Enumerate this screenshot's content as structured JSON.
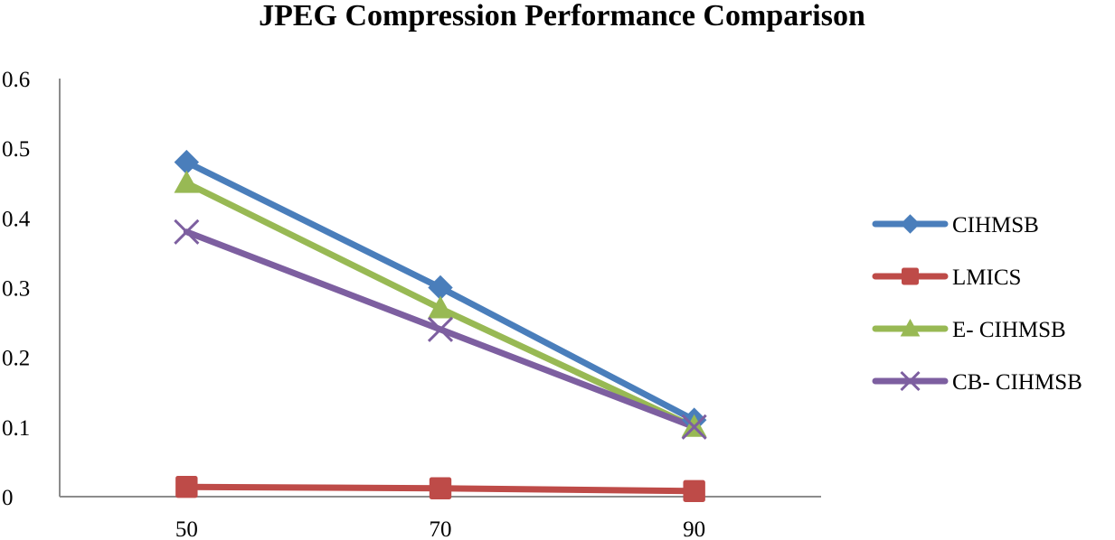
{
  "chart_data": {
    "type": "line",
    "title": "JPEG Compression Performance Comparison",
    "xlabel": "",
    "ylabel": "",
    "categories": [
      "50",
      "70",
      "90"
    ],
    "ylim": [
      0,
      0.6
    ],
    "yticks": [
      "0",
      "0.1",
      "0.2",
      "0.3",
      "0.4",
      "0.5",
      "0.6"
    ],
    "grid": false,
    "legend_position": "right",
    "series": [
      {
        "name": "CIHMSB",
        "values": [
          0.48,
          0.3,
          0.11
        ],
        "color": "#4a7ebb",
        "marker": "diamond"
      },
      {
        "name": "LMICS",
        "values": [
          0.014,
          0.012,
          0.008
        ],
        "color": "#be4b48",
        "marker": "square"
      },
      {
        "name": "E- CIHMSB",
        "values": [
          0.45,
          0.27,
          0.1
        ],
        "color": "#98b954",
        "marker": "triangle"
      },
      {
        "name": "CB- CIHMSB",
        "values": [
          0.38,
          0.24,
          0.1
        ],
        "color": "#7d5fa0",
        "marker": "x"
      }
    ]
  }
}
